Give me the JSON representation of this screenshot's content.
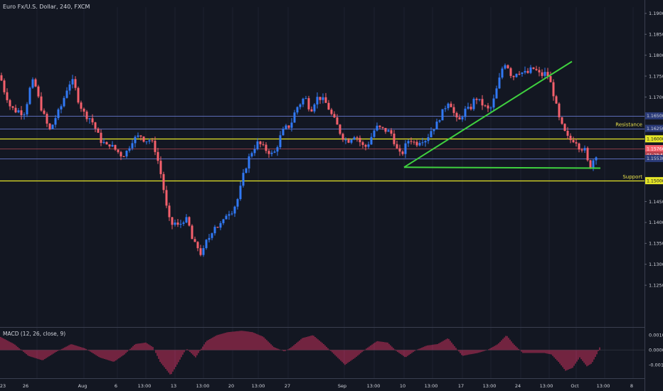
{
  "header": {
    "title": "Euro Fx/U.S. Dollar, 240, FXCM"
  },
  "macd_label": "MACD (12, 26, close, 9)",
  "colors": {
    "background": "#131722",
    "up_candle": "#3179f5",
    "down_candle": "#f4606c",
    "support_resistance_line": "#e6e629",
    "trend_line": "#3fd13f",
    "level_line": "#5b6bb5",
    "macd_histogram": "#d0315f",
    "text": "#d1d4dc",
    "yellow_text": "#e8e04a"
  },
  "chart_data": [
    {
      "type": "candlestick",
      "title": "Euro Fx/U.S. Dollar, 240, FXCM",
      "ylim": [
        1.115,
        1.1915
      ],
      "y_ticks": [
        "1.19000",
        "1.18500",
        "1.18000",
        "1.17500",
        "1.17000",
        "1.16500",
        "1.16250",
        "1.16000",
        "1.15766",
        "1.15530",
        "1.15000",
        "1.14500",
        "1.14000",
        "1.13500",
        "1.13000",
        "1.12500"
      ],
      "x_ticks": [
        "23",
        "26",
        "Aug",
        "6",
        "13:00",
        "13",
        "13:00",
        "20",
        "13:00",
        "27",
        "Sep",
        "13:00",
        "10",
        "13:00",
        "17",
        "13:00",
        "24",
        "13:00",
        "Oct",
        "13:00",
        "8"
      ],
      "close_path": [
        [
          0,
          1.1752
        ],
        [
          6,
          1.1715
        ],
        [
          12,
          1.169
        ],
        [
          16,
          1.1668
        ],
        [
          20,
          1.1676
        ],
        [
          24,
          1.1658
        ],
        [
          27,
          1.1672
        ],
        [
          31,
          1.166
        ],
        [
          35,
          1.1665
        ],
        [
          39,
          1.1695
        ],
        [
          43,
          1.1728
        ],
        [
          47,
          1.1738
        ],
        [
          51,
          1.172
        ],
        [
          55,
          1.169
        ],
        [
          59,
          1.1668
        ],
        [
          63,
          1.165
        ],
        [
          67,
          1.163
        ],
        [
          71,
          1.1618
        ],
        [
          75,
          1.164
        ],
        [
          80,
          1.1658
        ],
        [
          85,
          1.1673
        ],
        [
          89,
          1.1693
        ],
        [
          93,
          1.1715
        ],
        [
          97,
          1.1731
        ],
        [
          101,
          1.174
        ],
        [
          105,
          1.1725
        ],
        [
          109,
          1.1698
        ],
        [
          113,
          1.168
        ],
        [
          117,
          1.1664
        ],
        [
          121,
          1.1655
        ],
        [
          126,
          1.165
        ],
        [
          130,
          1.164
        ],
        [
          134,
          1.1625
        ],
        [
          138,
          1.1609
        ],
        [
          142,
          1.1595
        ],
        [
          146,
          1.159
        ],
        [
          150,
          1.1582
        ],
        [
          155,
          1.1589
        ],
        [
          159,
          1.1578
        ],
        [
          163,
          1.1573
        ],
        [
          167,
          1.1567
        ],
        [
          171,
          1.156
        ],
        [
          175,
          1.1564
        ],
        [
          179,
          1.1572
        ],
        [
          184,
          1.159
        ],
        [
          188,
          1.1603
        ],
        [
          192,
          1.16
        ],
        [
          196,
          1.161
        ],
        [
          200,
          1.1605
        ],
        [
          204,
          1.1593
        ],
        [
          208,
          1.16
        ],
        [
          213,
          1.1593
        ],
        [
          217,
          1.158
        ],
        [
          221,
          1.1555
        ],
        [
          225,
          1.1525
        ],
        [
          229,
          1.149
        ],
        [
          233,
          1.1445
        ],
        [
          237,
          1.141
        ],
        [
          241,
          1.1393
        ],
        [
          245,
          1.1402
        ],
        [
          249,
          1.139
        ],
        [
          253,
          1.1395
        ],
        [
          257,
          1.1405
        ],
        [
          261,
          1.141
        ],
        [
          266,
          1.139
        ],
        [
          270,
          1.136
        ],
        [
          274,
          1.1347
        ],
        [
          278,
          1.134
        ],
        [
          282,
          1.1326
        ],
        [
          286,
          1.1333
        ],
        [
          290,
          1.1354
        ],
        [
          294,
          1.1364
        ],
        [
          298,
          1.138
        ],
        [
          302,
          1.1393
        ],
        [
          306,
          1.139
        ],
        [
          310,
          1.1395
        ],
        [
          314,
          1.1402
        ],
        [
          318,
          1.142
        ],
        [
          322,
          1.1425
        ],
        [
          326,
          1.1428
        ],
        [
          330,
          1.144
        ],
        [
          335,
          1.146
        ],
        [
          339,
          1.149
        ],
        [
          343,
          1.152
        ],
        [
          347,
          1.154
        ],
        [
          351,
          1.156
        ],
        [
          355,
          1.1572
        ],
        [
          359,
          1.1583
        ],
        [
          363,
          1.1592
        ],
        [
          367,
          1.1584
        ],
        [
          371,
          1.1578
        ],
        [
          375,
          1.1572
        ],
        [
          379,
          1.1568
        ],
        [
          383,
          1.1562
        ],
        [
          387,
          1.157
        ],
        [
          391,
          1.159
        ],
        [
          395,
          1.161
        ],
        [
          400,
          1.1625
        ],
        [
          404,
          1.1628
        ],
        [
          408,
          1.1632
        ],
        [
          412,
          1.165
        ],
        [
          416,
          1.1673
        ],
        [
          420,
          1.168
        ],
        [
          424,
          1.169
        ],
        [
          428,
          1.17
        ],
        [
          432,
          1.169
        ],
        [
          436,
          1.1665
        ],
        [
          440,
          1.168
        ],
        [
          444,
          1.1696
        ],
        [
          448,
          1.17
        ],
        [
          452,
          1.1695
        ],
        [
          456,
          1.169
        ],
        [
          460,
          1.168
        ],
        [
          464,
          1.1665
        ],
        [
          468,
          1.165
        ],
        [
          472,
          1.164
        ],
        [
          476,
          1.1623
        ],
        [
          480,
          1.1608
        ],
        [
          484,
          1.16
        ],
        [
          488,
          1.1595
        ],
        [
          492,
          1.1598
        ],
        [
          496,
          1.1608
        ],
        [
          500,
          1.161
        ],
        [
          504,
          1.1597
        ],
        [
          508,
          1.1588
        ],
        [
          512,
          1.1578
        ],
        [
          516,
          1.1585
        ],
        [
          520,
          1.1595
        ],
        [
          524,
          1.1615
        ],
        [
          528,
          1.1625
        ],
        [
          532,
          1.163
        ],
        [
          536,
          1.162
        ],
        [
          540,
          1.1625
        ],
        [
          544,
          1.1615
        ],
        [
          548,
          1.162
        ],
        [
          552,
          1.1605
        ],
        [
          556,
          1.1583
        ],
        [
          560,
          1.1566
        ],
        [
          564,
          1.156
        ],
        [
          568,
          1.1575
        ],
        [
          572,
          1.1592
        ],
        [
          576,
          1.16
        ],
        [
          580,
          1.1595
        ],
        [
          584,
          1.1588
        ],
        [
          588,
          1.1592
        ],
        [
          592,
          1.16
        ],
        [
          596,
          1.1597
        ],
        [
          600,
          1.16
        ],
        [
          604,
          1.1615
        ],
        [
          608,
          1.1625
        ],
        [
          612,
          1.163
        ],
        [
          616,
          1.1642
        ],
        [
          620,
          1.166
        ],
        [
          624,
          1.1668
        ],
        [
          628,
          1.1686
        ],
        [
          632,
          1.1693
        ],
        [
          636,
          1.167
        ],
        [
          640,
          1.1652
        ],
        [
          644,
          1.1638
        ],
        [
          648,
          1.165
        ],
        [
          652,
          1.1665
        ],
        [
          656,
          1.1672
        ],
        [
          660,
          1.1668
        ],
        [
          664,
          1.1683
        ],
        [
          668,
          1.17
        ],
        [
          672,
          1.1693
        ],
        [
          676,
          1.1685
        ],
        [
          680,
          1.168
        ],
        [
          684,
          1.1672
        ],
        [
          688,
          1.1668
        ],
        [
          692,
          1.168
        ],
        [
          696,
          1.1706
        ],
        [
          700,
          1.173
        ],
        [
          704,
          1.1755
        ],
        [
          708,
          1.1782
        ],
        [
          712,
          1.178
        ],
        [
          716,
          1.1765
        ],
        [
          720,
          1.1745
        ],
        [
          724,
          1.1755
        ],
        [
          728,
          1.1765
        ],
        [
          732,
          1.1757
        ],
        [
          736,
          1.176
        ],
        [
          740,
          1.1755
        ],
        [
          744,
          1.176
        ],
        [
          748,
          1.177
        ],
        [
          752,
          1.1765
        ],
        [
          756,
          1.176
        ],
        [
          760,
          1.175
        ],
        [
          764,
          1.1755
        ],
        [
          768,
          1.1758
        ],
        [
          772,
          1.1745
        ],
        [
          776,
          1.172
        ],
        [
          780,
          1.1695
        ],
        [
          784,
          1.166
        ],
        [
          788,
          1.1635
        ],
        [
          792,
          1.1625
        ],
        [
          796,
          1.1605
        ],
        [
          800,
          1.16
        ],
        [
          804,
          1.1595
        ],
        [
          808,
          1.16
        ],
        [
          812,
          1.1588
        ],
        [
          816,
          1.1575
        ],
        [
          820,
          1.158
        ],
        [
          824,
          1.1565
        ],
        [
          828,
          1.1525
        ],
        [
          832,
          1.1545
        ],
        [
          836,
          1.1555
        ],
        [
          840,
          1.157
        ]
      ],
      "horizontal_levels": [
        {
          "value": 1.1655,
          "style": "level"
        },
        {
          "value": 1.1625,
          "style": "level"
        },
        {
          "value": 1.16,
          "style": "yellow"
        },
        {
          "value": 1.15766,
          "style": "current"
        },
        {
          "value": 1.1553,
          "style": "level"
        },
        {
          "value": 1.15,
          "style": "yellow"
        }
      ],
      "annotations": [
        {
          "text": "Resistance",
          "at": 1.1625
        },
        {
          "text": "Support",
          "at": 1.15
        }
      ],
      "trend_lines": [
        {
          "from": [
            568,
            1.1532
          ],
          "to": [
            804,
            1.1785
          ],
          "name": "rising-trend-line"
        },
        {
          "from": [
            568,
            1.1532
          ],
          "to": [
            844,
            1.153
          ],
          "name": "horizontal-support-trend-line"
        }
      ],
      "current_price_label": "1.15766",
      "countdown_label": "01:28:57"
    },
    {
      "type": "bar",
      "title": "MACD (12, 26, close, 9)",
      "y_ticks": [
        "0.0010",
        "0.0000",
        "-0.0010"
      ],
      "ylim": [
        -0.0019,
        0.0015
      ]
    }
  ]
}
